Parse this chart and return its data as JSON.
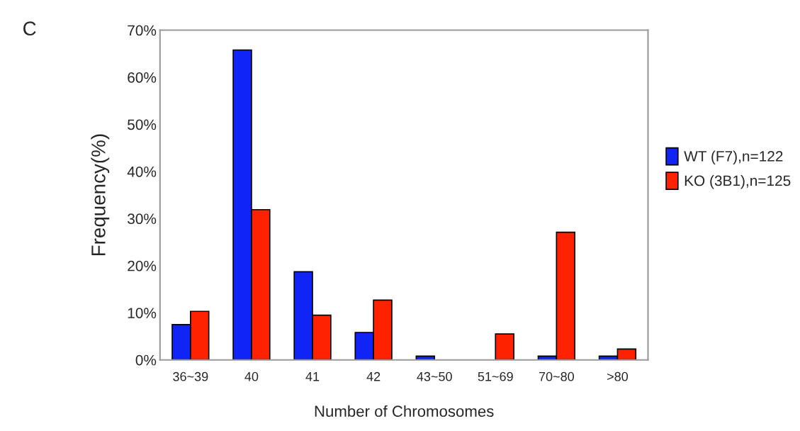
{
  "chart_data": {
    "type": "bar",
    "xlabel": "Number of Chromosomes",
    "ylabel": "Frequency(%)",
    "categories": [
      "36~39",
      "40",
      "41",
      "42",
      "43~50",
      "51~69",
      "70~80",
      ">80"
    ],
    "series": [
      {
        "name": "WT (F7),n=122",
        "color": "#0f24f5",
        "values": [
          7.5,
          65.8,
          18.7,
          5.8,
          0.8,
          null,
          0.8,
          0.8
        ]
      },
      {
        "name": "KO (3B1),n=125",
        "color": "#ff2200",
        "values": [
          10.3,
          31.9,
          9.5,
          12.7,
          null,
          5.5,
          27.1,
          2.3
        ]
      }
    ],
    "ylim": [
      0,
      70
    ],
    "yticks": [
      {
        "value": 0,
        "label": "0%"
      },
      {
        "value": 10,
        "label": "10%"
      },
      {
        "value": 20,
        "label": "20%"
      },
      {
        "value": 30,
        "label": "30%"
      },
      {
        "value": 40,
        "label": "40%"
      },
      {
        "value": 50,
        "label": "50%"
      },
      {
        "value": 60,
        "label": "60%"
      },
      {
        "value": 70,
        "label": "70%"
      }
    ],
    "annotations": [
      "C"
    ],
    "legend": "right",
    "grid": false
  }
}
